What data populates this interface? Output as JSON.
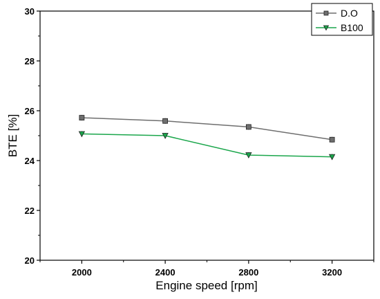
{
  "chart_data": {
    "type": "line",
    "title": "",
    "xlabel": "Engine speed [rpm]",
    "ylabel": "BTE [%]",
    "x": [
      2000,
      2400,
      2800,
      3200
    ],
    "xticks": [
      "2000",
      "2400",
      "2800",
      "3200"
    ],
    "xlim": [
      1800,
      3400
    ],
    "ylim": [
      20,
      30
    ],
    "yticks": [
      "20",
      "22",
      "24",
      "26",
      "28",
      "30"
    ],
    "grid": false,
    "legend_position": "top-right",
    "series": [
      {
        "name": "D.O",
        "values": [
          25.72,
          25.59,
          25.35,
          24.84
        ],
        "color": "#6e6e6e",
        "marker": "square"
      },
      {
        "name": "B100",
        "values": [
          25.07,
          25.0,
          24.22,
          24.15
        ],
        "color": "#1aa64b",
        "marker": "triangle-down"
      }
    ]
  }
}
